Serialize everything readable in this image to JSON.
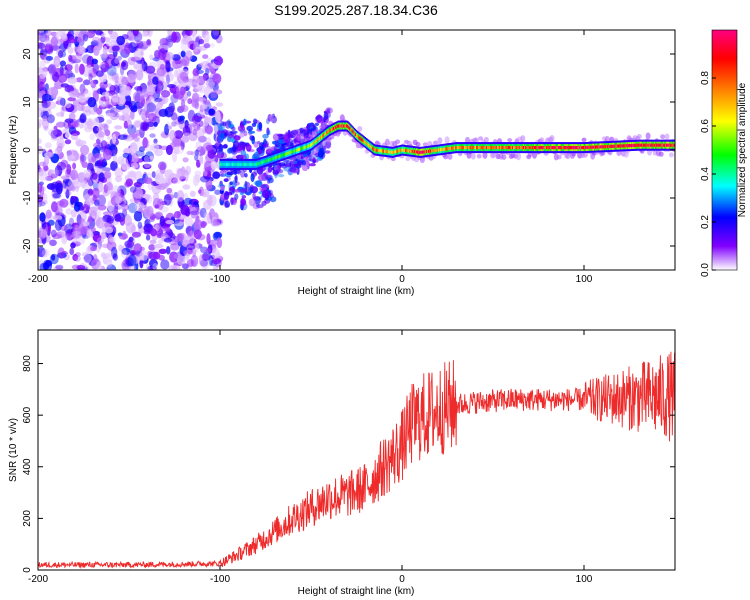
{
  "figure_title": "S199.2025.287.18.34.C36",
  "chart_data": [
    {
      "type": "heatmap",
      "xlabel": "Height of straight line (km)",
      "ylabel": "Frequency (Hz)",
      "xlim": [
        -200,
        150
      ],
      "ylim": [
        -25,
        25
      ],
      "xticks": [
        -200,
        -100,
        0,
        100
      ],
      "xtick_labels": [
        "-200",
        "-100",
        "0",
        "100"
      ],
      "yticks": [
        -20,
        -10,
        0,
        10,
        20
      ],
      "ytick_labels": [
        "-20",
        "-10",
        "0",
        "10",
        "20"
      ],
      "colorbar": {
        "label": "Normalized spectral amplitude",
        "range": [
          0,
          1
        ],
        "ticks": [
          0.0,
          0.2,
          0.4,
          0.6,
          0.8
        ],
        "tick_labels": [
          "0.0",
          "0.2",
          "0.4",
          "0.6",
          "0.8"
        ],
        "colormap": [
          "#ffffff",
          "#8000ff",
          "#0000ff",
          "#00ffff",
          "#00ff00",
          "#ffff00",
          "#ff8000",
          "#ff0000",
          "#ff0080"
        ]
      },
      "ridge": {
        "x": [
          -100,
          -80,
          -65,
          -50,
          -40,
          -35,
          -30,
          -25,
          -15,
          -5,
          0,
          10,
          20,
          30,
          60,
          100,
          130,
          150
        ],
        "freq": [
          -3,
          -3,
          -1,
          1,
          4,
          5,
          5,
          3,
          0,
          -0.5,
          0,
          -0.5,
          0,
          0.5,
          0.5,
          0.5,
          1,
          1
        ],
        "amplitude": [
          0.35,
          0.4,
          0.5,
          0.6,
          0.75,
          0.85,
          0.85,
          0.8,
          0.75,
          0.7,
          0.7,
          0.9,
          0.7,
          0.75,
          0.8,
          0.9,
          0.9,
          0.9
        ]
      }
    },
    {
      "type": "line",
      "xlabel": "Height of straight line (km)",
      "ylabel": "SNR (10 * v/v)",
      "xlim": [
        -200,
        150
      ],
      "ylim": [
        0,
        930
      ],
      "xticks": [
        -200,
        -100,
        0,
        100
      ],
      "xtick_labels": [
        "-200",
        "-100",
        "0",
        "100"
      ],
      "yticks": [
        0,
        200,
        400,
        600,
        800
      ],
      "ytick_labels": [
        "0",
        "200",
        "400",
        "600",
        "800"
      ],
      "color": "#ee2a2a",
      "series": [
        {
          "name": "SNR",
          "x": [
            -200,
            -150,
            -100,
            -90,
            -80,
            -70,
            -60,
            -50,
            -40,
            -30,
            -20,
            -10,
            0,
            5,
            10,
            20,
            30,
            40,
            60,
            80,
            100,
            120,
            140,
            150
          ],
          "values": [
            20,
            20,
            25,
            60,
            100,
            150,
            200,
            240,
            280,
            290,
            320,
            400,
            480,
            560,
            590,
            620,
            640,
            650,
            660,
            660,
            660,
            665,
            670,
            675
          ]
        }
      ]
    }
  ]
}
